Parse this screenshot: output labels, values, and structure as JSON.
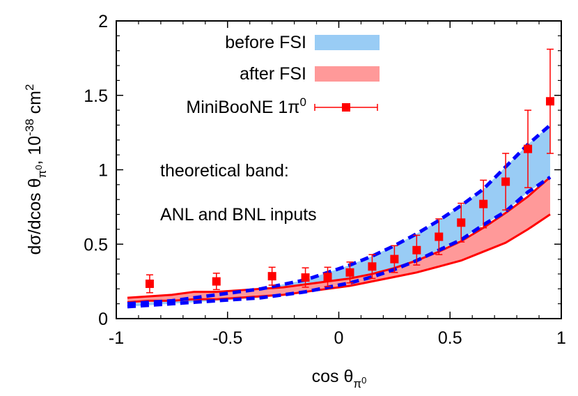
{
  "chart_data": {
    "type": "line",
    "xlabel": "cos θ",
    "xlabel_sub": "π",
    "xlabel_subsup": "0",
    "ylabel": "dσ/dcos θ",
    "ylabel_sub": "π",
    "ylabel_subsup": "0",
    "ylabel_units": ", 10",
    "ylabel_exp": "-38",
    "ylabel_unit2": " cm",
    "ylabel_unit2_exp": "2",
    "xlim": [
      -1,
      1
    ],
    "ylim": [
      0,
      2
    ],
    "xticks": [
      "-1",
      "-0.5",
      "0",
      "0.5",
      "1"
    ],
    "yticks": [
      "0",
      "0.5",
      "1",
      "1.5",
      "2"
    ],
    "grid": false,
    "legend_position": "top-left",
    "legend": [
      {
        "label": "before FSI",
        "kind": "band",
        "color": "#99ccf5"
      },
      {
        "label": "after FSI",
        "kind": "band",
        "color": "#ff9999"
      },
      {
        "label": "MiniBooNE 1π",
        "sup": "0",
        "kind": "points",
        "color": "#ff0000"
      }
    ],
    "annotations": [
      "theoretical band:",
      "ANL and BNL inputs"
    ],
    "band_x": [
      -0.95,
      -0.85,
      -0.75,
      -0.65,
      -0.55,
      -0.45,
      -0.35,
      -0.25,
      -0.15,
      -0.05,
      0.05,
      0.15,
      0.25,
      0.35,
      0.45,
      0.55,
      0.65,
      0.75,
      0.85,
      0.95
    ],
    "bands": [
      {
        "name": "before FSI",
        "fill": "#99ccf5",
        "line_color": "#0000ff",
        "line_style": "dashed",
        "upper": [
          0.1,
          0.11,
          0.12,
          0.14,
          0.16,
          0.18,
          0.2,
          0.23,
          0.26,
          0.31,
          0.36,
          0.42,
          0.49,
          0.57,
          0.66,
          0.76,
          0.87,
          1.02,
          1.17,
          1.3
        ],
        "lower": [
          0.08,
          0.09,
          0.1,
          0.11,
          0.12,
          0.13,
          0.14,
          0.16,
          0.18,
          0.21,
          0.24,
          0.28,
          0.33,
          0.39,
          0.46,
          0.53,
          0.63,
          0.72,
          0.85,
          0.95
        ]
      },
      {
        "name": "after FSI",
        "fill": "#ff9999",
        "line_color": "#ff0000",
        "line_style": "solid",
        "upper": [
          0.14,
          0.15,
          0.16,
          0.18,
          0.18,
          0.19,
          0.2,
          0.21,
          0.23,
          0.25,
          0.27,
          0.3,
          0.34,
          0.39,
          0.45,
          0.52,
          0.61,
          0.71,
          0.82,
          0.95
        ],
        "lower": [
          0.11,
          0.12,
          0.12,
          0.13,
          0.13,
          0.14,
          0.15,
          0.16,
          0.18,
          0.2,
          0.22,
          0.25,
          0.28,
          0.31,
          0.35,
          0.39,
          0.45,
          0.51,
          0.6,
          0.7
        ]
      }
    ],
    "series": [
      {
        "name": "MiniBooNE 1π0",
        "color": "#ff0000",
        "x": [
          -0.85,
          -0.55,
          -0.3,
          -0.15,
          -0.05,
          0.05,
          0.15,
          0.25,
          0.35,
          0.45,
          0.55,
          0.65,
          0.75,
          0.85,
          0.95
        ],
        "y": [
          0.234,
          0.25,
          0.285,
          0.276,
          0.28,
          0.31,
          0.35,
          0.4,
          0.46,
          0.55,
          0.645,
          0.77,
          0.92,
          1.14,
          1.46
        ],
        "err": [
          0.06,
          0.055,
          0.06,
          0.065,
          0.065,
          0.07,
          0.08,
          0.09,
          0.1,
          0.12,
          0.13,
          0.16,
          0.19,
          0.26,
          0.35
        ]
      }
    ]
  }
}
